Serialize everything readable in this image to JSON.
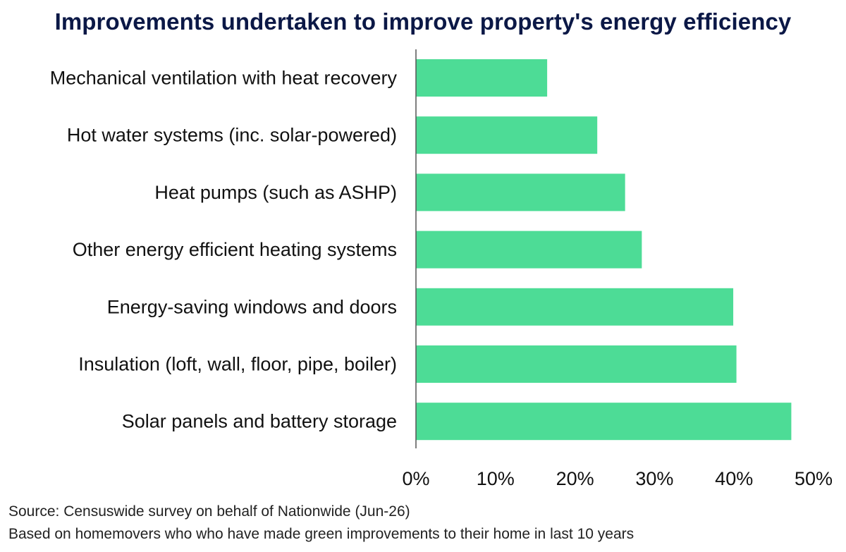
{
  "chart_data": {
    "type": "bar",
    "orientation": "horizontal",
    "title": "Improvements undertaken to improve property's energy efficiency",
    "categories": [
      "Mechanical ventilation with heat recovery",
      "Hot water systems (inc. solar-powered)",
      "Heat pumps (such as ASHP)",
      "Other energy efficient heating systems",
      "Energy-saving windows and doors",
      "Insulation (loft, wall, floor, pipe, boiler)",
      "Solar panels and battery storage"
    ],
    "values": [
      16.5,
      22.8,
      26.3,
      28.4,
      39.9,
      40.3,
      47.2
    ],
    "xlim": [
      0,
      50
    ],
    "xticks": [
      0,
      10,
      20,
      30,
      40,
      50
    ],
    "xtick_labels": [
      "0%",
      "10%",
      "20%",
      "30%",
      "40%",
      "50%"
    ],
    "grid": false,
    "legend": "none",
    "bar_color": "#4ddc96",
    "title_color": "#0b1846"
  },
  "notes": {
    "source": "Source: Censuswide survey on behalf of Nationwide (Jun-26)",
    "base": "Based on homemovers who who have made green improvements to their home in last 10 years"
  }
}
